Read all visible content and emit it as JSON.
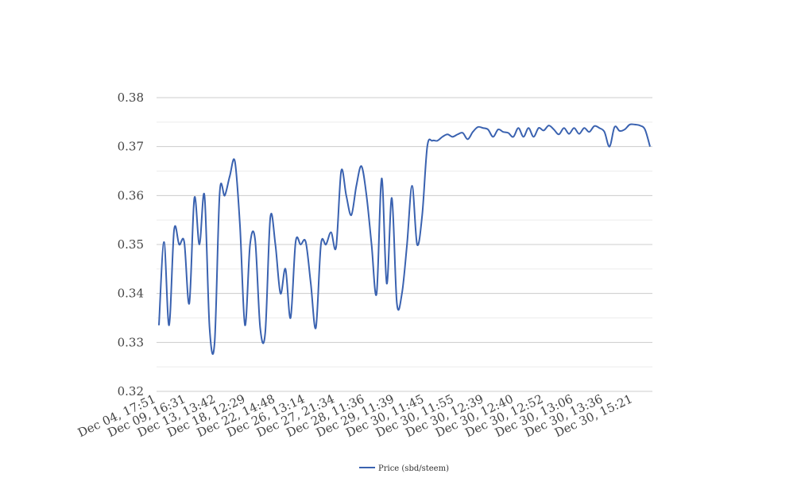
{
  "chart_data": {
    "type": "line",
    "title": "",
    "xlabel": "",
    "ylabel": "",
    "ylim": [
      0.32,
      0.38
    ],
    "y_ticks": [
      "0.32",
      "0.33",
      "0.34",
      "0.35",
      "0.36",
      "0.37",
      "0.38"
    ],
    "grid": "horizontal",
    "legend_position": "bottom-center",
    "x_tick_labels": [
      "Dec 04, 17:51",
      "Dec 09, 16:31",
      "Dec 13, 13:42",
      "Dec 18, 12:29",
      "Dec 22, 14:48",
      "Dec 26, 13:14",
      "Dec 27, 21:34",
      "Dec 28, 11:36",
      "Dec 29, 11:39",
      "Dec 30, 11:45",
      "Dec 30, 11:55",
      "Dec 30, 12:39",
      "Dec 30, 12:40",
      "Dec 30, 12:52",
      "Dec 30, 13:06",
      "Dec 30, 13:36",
      "Dec 30, 15:21"
    ],
    "series": [
      {
        "name": "Price (sbd/steem)",
        "color": "#3a62b0",
        "values": [
          0.3335,
          0.3505,
          0.3335,
          0.353,
          0.35,
          0.3505,
          0.338,
          0.3595,
          0.35,
          0.36,
          0.333,
          0.33,
          0.3605,
          0.36,
          0.364,
          0.367,
          0.354,
          0.3335,
          0.35,
          0.351,
          0.333,
          0.332,
          0.3555,
          0.35,
          0.34,
          0.345,
          0.335,
          0.3505,
          0.35,
          0.3505,
          0.342,
          0.333,
          0.35,
          0.35,
          0.3525,
          0.3495,
          0.365,
          0.36,
          0.356,
          0.362,
          0.366,
          0.36,
          0.35,
          0.34,
          0.3635,
          0.342,
          0.3595,
          0.338,
          0.34,
          0.35,
          0.362,
          0.35,
          0.356,
          0.37,
          0.3712,
          0.3712,
          0.372,
          0.3725,
          0.372,
          0.3725,
          0.3728,
          0.3715,
          0.373,
          0.374,
          0.3738,
          0.3735,
          0.372,
          0.3735,
          0.373,
          0.3728,
          0.372,
          0.3738,
          0.372,
          0.3738,
          0.372,
          0.3738,
          0.3733,
          0.3743,
          0.3735,
          0.3725,
          0.3738,
          0.3726,
          0.3738,
          0.3726,
          0.3738,
          0.373,
          0.3742,
          0.3738,
          0.373,
          0.37,
          0.374,
          0.3732,
          0.3735,
          0.3745,
          0.3745,
          0.3743,
          0.3735,
          0.37
        ]
      }
    ]
  }
}
